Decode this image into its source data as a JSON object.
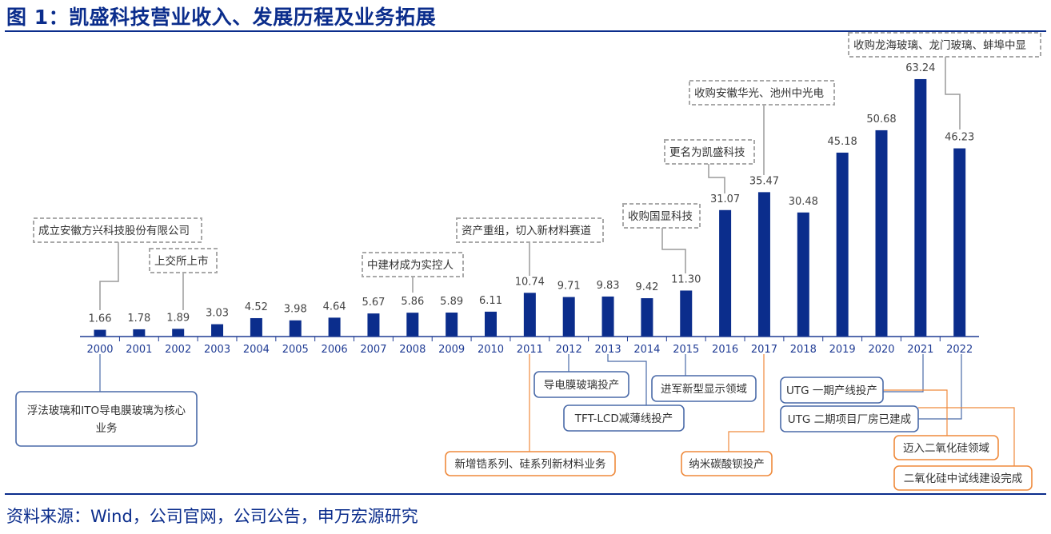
{
  "figure": {
    "title": "图 1：凯盛科技营业收入、发展历程及业务拓展",
    "source": "资料来源：Wind，公司官网，公司公告，申万宏源研究"
  },
  "chart_data": {
    "type": "bar",
    "categories": [
      "2000",
      "2001",
      "2002",
      "2003",
      "2004",
      "2005",
      "2006",
      "2007",
      "2008",
      "2009",
      "2010",
      "2011",
      "2012",
      "2013",
      "2014",
      "2015",
      "2016",
      "2017",
      "2018",
      "2019",
      "2020",
      "2021",
      "2022"
    ],
    "values": [
      1.66,
      1.78,
      1.89,
      3.03,
      4.52,
      3.98,
      4.64,
      5.67,
      5.86,
      5.89,
      6.11,
      10.74,
      9.71,
      9.83,
      9.42,
      11.3,
      31.07,
      35.47,
      30.48,
      45.18,
      50.68,
      63.24,
      46.23
    ],
    "value_labels": [
      "1.66",
      "1.78",
      "1.89",
      "3.03",
      "4.52",
      "3.98",
      "4.64",
      "5.67",
      "5.86",
      "5.89",
      "6.11",
      "10.74",
      "9.71",
      "9.83",
      "9.42",
      "11.30",
      "31.07",
      "35.47",
      "30.48",
      "45.18",
      "50.68",
      "63.24",
      "46.23"
    ],
    "title": "",
    "xlabel": "",
    "ylabel": "",
    "ylim": [
      0,
      65
    ],
    "grid": false,
    "bar_color": "#0b2d8c",
    "annotations_above": [
      {
        "year": "2000",
        "text": "成立安徽方兴科技股份有限公司"
      },
      {
        "year": "2002",
        "text": "上交所上市"
      },
      {
        "year": "2008",
        "text": "中建材成为实控人"
      },
      {
        "year": "2011",
        "text": "资产重组，切入新材料赛道"
      },
      {
        "year": "2015",
        "text": "收购国显科技"
      },
      {
        "year": "2016",
        "text": "更名为凯盛科技"
      },
      {
        "year": "2017",
        "text": "收购安徽华光、池州中光电"
      },
      {
        "year": "2022",
        "text": "收购龙海玻璃、龙门玻璃、蚌埠中显"
      }
    ],
    "annotations_below": [
      {
        "year": "2000",
        "text_lines": [
          "浮法玻璃和ITO导电膜玻璃为核心",
          "业务"
        ],
        "color": "#4a6aa8"
      },
      {
        "year": "2011",
        "text_lines": [
          "新增锆系列、硅系列新材料业务"
        ],
        "color": "#ef8a3c"
      },
      {
        "year": "2012",
        "text_lines": [
          "导电膜玻璃投产"
        ],
        "color": "#4a6aa8"
      },
      {
        "year": "2013",
        "text_lines": [
          "TFT-LCD减薄线投产"
        ],
        "color": "#4a6aa8"
      },
      {
        "year": "2015",
        "text_lines": [
          "进军新型显示领域"
        ],
        "color": "#4a6aa8"
      },
      {
        "year": "2017",
        "text_lines": [
          "纳米碳酸钡投产"
        ],
        "color": "#ef8a3c"
      },
      {
        "year": "2021",
        "text_lines": [
          "UTG 一期产线投产"
        ],
        "color": "#4a6aa8"
      },
      {
        "year": "2022",
        "text_lines": [
          "UTG 二期项目厂房已建成"
        ],
        "color": "#4a6aa8"
      },
      {
        "year": "2021",
        "text_lines": [
          "迈入二氧化硅领域"
        ],
        "color": "#ef8a3c"
      },
      {
        "year": "2022",
        "text_lines": [
          "二氧化硅中试线建设完成"
        ],
        "color": "#ef8a3c"
      }
    ]
  }
}
